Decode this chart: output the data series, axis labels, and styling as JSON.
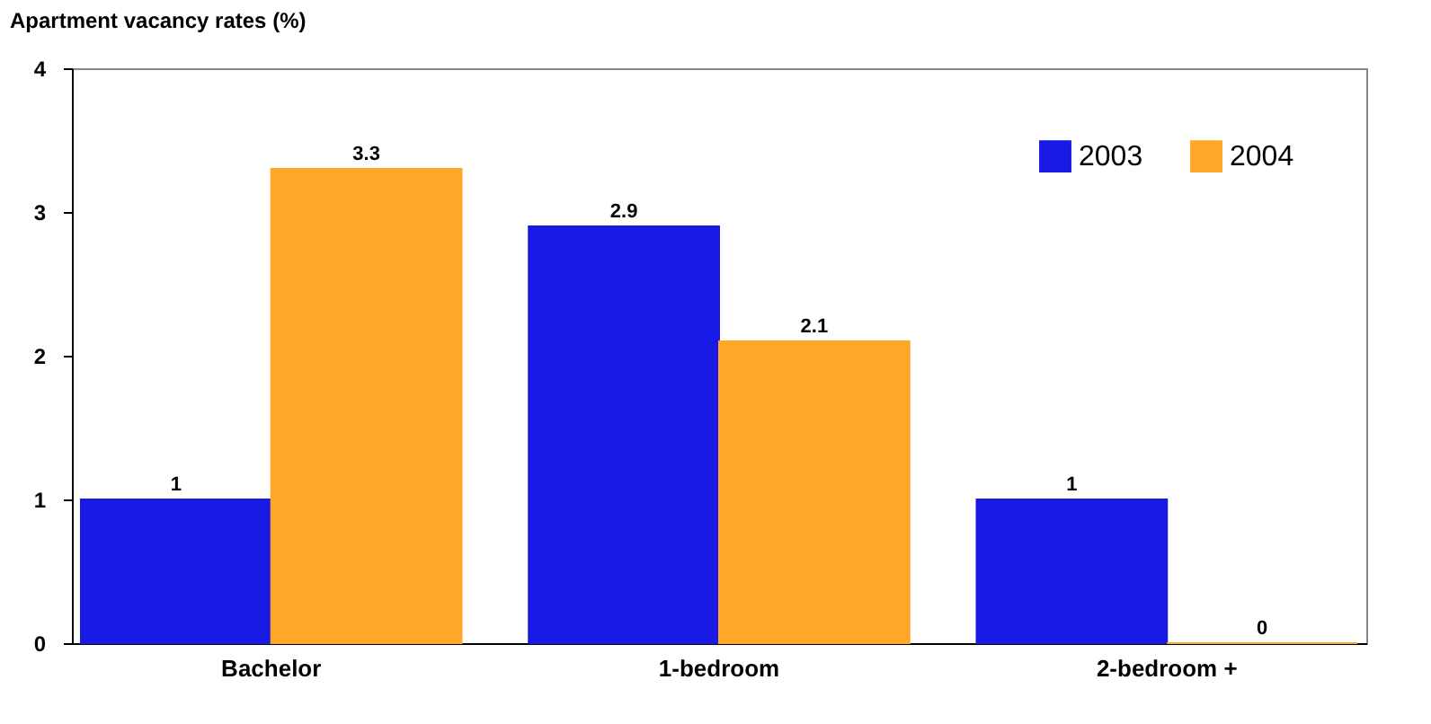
{
  "chart_data": {
    "type": "bar",
    "ylabel": "Apartment vacancy rates (%)",
    "categories": [
      "Bachelor",
      "1-bedroom",
      "2-bedroom +"
    ],
    "series": [
      {
        "name": "2003",
        "color": "#1a1ae6",
        "values": [
          1,
          2.9,
          1
        ]
      },
      {
        "name": "2004",
        "color": "#ffa726",
        "values": [
          3.3,
          2.1,
          0
        ]
      }
    ],
    "ylim": [
      0,
      4
    ],
    "yticks": [
      0,
      1,
      2,
      3,
      4
    ],
    "grid": false,
    "legend": "top right",
    "data_labels": true
  }
}
